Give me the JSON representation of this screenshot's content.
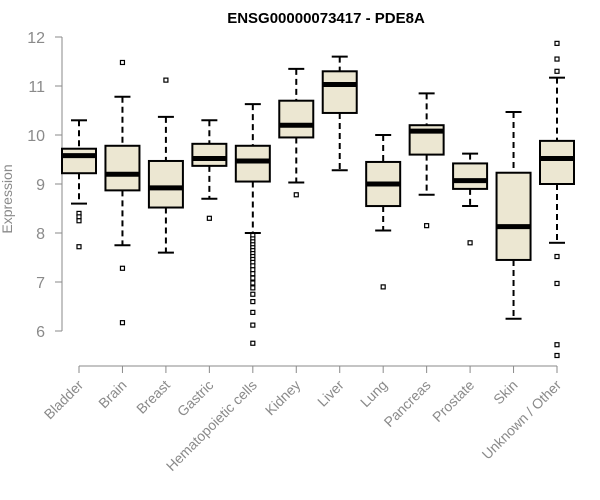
{
  "chart_data": {
    "type": "box",
    "title": "ENSG00000073417 - PDE8A",
    "xlabel": "",
    "ylabel": "Expression",
    "ylim": [
      5.45,
      12.05
    ],
    "yticks": [
      6,
      7,
      8,
      9,
      10,
      11,
      12
    ],
    "categories": [
      "Bladder",
      "Brain",
      "Breast",
      "Gastric",
      "Hematopoietic cells",
      "Kidney",
      "Liver",
      "Lung",
      "Pancreas",
      "Prostate",
      "Skin",
      "Unknown / Other"
    ],
    "boxes": [
      {
        "category": "Bladder",
        "min": 8.6,
        "q1": 9.22,
        "median": 9.58,
        "q3": 9.72,
        "max": 10.3,
        "outliers": [
          8.4,
          8.33,
          8.25,
          7.72
        ]
      },
      {
        "category": "Brain",
        "min": 7.75,
        "q1": 8.87,
        "median": 9.2,
        "q3": 9.78,
        "max": 10.78,
        "outliers": [
          11.48,
          7.28,
          6.17
        ]
      },
      {
        "category": "Breast",
        "min": 7.6,
        "q1": 8.52,
        "median": 8.92,
        "q3": 9.47,
        "max": 10.37,
        "outliers": [
          11.12
        ]
      },
      {
        "category": "Gastric",
        "min": 8.7,
        "q1": 9.37,
        "median": 9.52,
        "q3": 9.82,
        "max": 10.3,
        "outliers": [
          8.3
        ]
      },
      {
        "category": "Hematopoietic cells",
        "min": 8.0,
        "q1": 9.05,
        "median": 9.47,
        "q3": 9.78,
        "max": 10.63,
        "outliers": [
          7.95,
          7.88,
          7.82,
          7.76,
          7.7,
          7.64,
          7.58,
          7.52,
          7.46,
          7.4,
          7.33,
          7.25,
          7.17,
          7.08,
          6.98,
          6.88,
          6.75,
          6.6,
          6.38,
          6.12,
          5.75
        ]
      },
      {
        "category": "Kidney",
        "min": 9.03,
        "q1": 9.95,
        "median": 10.2,
        "q3": 10.7,
        "max": 11.35,
        "outliers": [
          8.78
        ]
      },
      {
        "category": "Liver",
        "min": 9.28,
        "q1": 10.45,
        "median": 11.03,
        "q3": 11.3,
        "max": 11.6,
        "outliers": []
      },
      {
        "category": "Lung",
        "min": 8.05,
        "q1": 8.55,
        "median": 9.0,
        "q3": 9.45,
        "max": 10.0,
        "outliers": [
          6.9
        ]
      },
      {
        "category": "Pancreas",
        "min": 8.78,
        "q1": 9.6,
        "median": 10.08,
        "q3": 10.2,
        "max": 10.85,
        "outliers": [
          8.15
        ]
      },
      {
        "category": "Prostate",
        "min": 8.55,
        "q1": 8.9,
        "median": 9.07,
        "q3": 9.42,
        "max": 9.62,
        "outliers": [
          7.8
        ]
      },
      {
        "category": "Skin",
        "min": 6.25,
        "q1": 7.45,
        "median": 8.13,
        "q3": 9.23,
        "max": 10.47,
        "outliers": []
      },
      {
        "category": "Unknown / Other",
        "min": 7.8,
        "q1": 9.0,
        "median": 9.52,
        "q3": 9.88,
        "max": 11.17,
        "outliers": [
          11.87,
          11.55,
          11.3,
          7.52,
          6.97,
          5.72,
          5.5
        ]
      }
    ],
    "colors": {
      "box_fill": "#ece7d2",
      "box_stroke": "#000000",
      "median": "#000000",
      "axis": "#8a8a8a",
      "tick_label": "#8a8a8a",
      "title": "#000000"
    }
  }
}
